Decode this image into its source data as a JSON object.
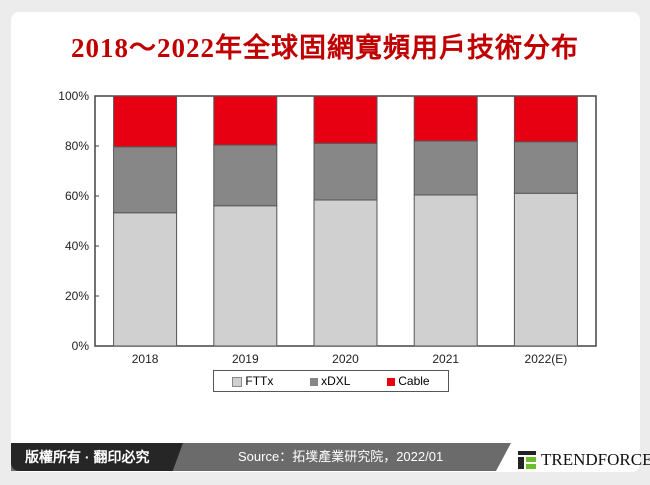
{
  "chart_data": {
    "type": "bar",
    "stacked": true,
    "title": "2018～2022年全球固網寬頻用戶技術分布",
    "categories": [
      "2018",
      "2019",
      "2020",
      "2021",
      "2022(E)"
    ],
    "series": [
      {
        "name": "FTTx",
        "color": "#d0d0d0",
        "values": [
          53.3,
          56.1,
          58.4,
          60.4,
          61.1
        ]
      },
      {
        "name": "xDXL",
        "color": "#878787",
        "values": [
          26.4,
          24.3,
          22.7,
          21.6,
          20.6
        ]
      },
      {
        "name": "Cable",
        "color": "#e60012",
        "values": [
          20.3,
          19.6,
          18.9,
          18.0,
          18.3
        ]
      }
    ],
    "yticks": [
      "0%",
      "20%",
      "40%",
      "60%",
      "80%",
      "100%"
    ],
    "ylim": [
      0,
      100
    ],
    "legend": "bottom",
    "grid": false
  },
  "footer": {
    "copyright": "版權所有 · 翻印必究",
    "source": "Source：拓墣產業研究院，2022/01",
    "logo": "TRENDFORCE"
  }
}
